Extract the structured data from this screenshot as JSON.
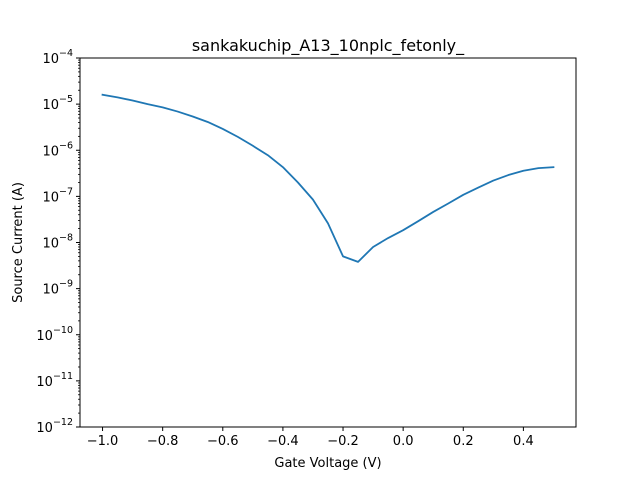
{
  "chart_data": {
    "type": "line",
    "title": "sankakuchip_A13_10nplc_fetonly_",
    "xlabel": "Gate Voltage (V)",
    "ylabel": "Source Current (A)",
    "xlim": [
      -1.075,
      0.575
    ],
    "ylim": [
      1e-12,
      0.0001
    ],
    "yscale": "log",
    "grid": false,
    "xticks": [
      -1.0,
      -0.8,
      -0.6,
      -0.4,
      -0.2,
      0.0,
      0.2,
      0.4
    ],
    "xtick_labels": [
      "−1.0",
      "−0.8",
      "−0.6",
      "−0.4",
      "−0.2",
      "0.0",
      "0.2",
      "0.4"
    ],
    "yticks": [
      {
        "value": 1e-12,
        "base": "10",
        "exp": "−12"
      },
      {
        "value": 1e-11,
        "base": "10",
        "exp": "−11"
      },
      {
        "value": 1e-10,
        "base": "10",
        "exp": "−10"
      },
      {
        "value": 1e-09,
        "base": "10",
        "exp": "−9"
      },
      {
        "value": 1e-08,
        "base": "10",
        "exp": "−8"
      },
      {
        "value": 1e-07,
        "base": "10",
        "exp": "−7"
      },
      {
        "value": 1e-06,
        "base": "10",
        "exp": "−6"
      },
      {
        "value": 1e-05,
        "base": "10",
        "exp": "−5"
      },
      {
        "value": 0.0001,
        "base": "10",
        "exp": "−4"
      }
    ],
    "series": [
      {
        "color": "#1f77b4",
        "x": [
          -1.0,
          -0.95,
          -0.9,
          -0.85,
          -0.8,
          -0.75,
          -0.7,
          -0.65,
          -0.6,
          -0.55,
          -0.5,
          -0.45,
          -0.4,
          -0.35,
          -0.3,
          -0.25,
          -0.2,
          -0.15,
          -0.1,
          -0.05,
          0.0,
          0.05,
          0.1,
          0.15,
          0.2,
          0.25,
          0.3,
          0.35,
          0.4,
          0.45,
          0.5
        ],
        "y": [
          1.6e-05,
          1.4e-05,
          1.2e-05,
          1e-05,
          8.5e-06,
          6.9e-06,
          5.4e-06,
          4.1e-06,
          2.9e-06,
          1.95e-06,
          1.25e-06,
          7.8e-07,
          4.3e-07,
          2e-07,
          8.5e-08,
          2.6e-08,
          5e-09,
          3.8e-09,
          8e-09,
          1.25e-08,
          1.85e-08,
          2.9e-08,
          4.6e-08,
          7e-08,
          1.08e-07,
          1.55e-07,
          2.2e-07,
          2.9e-07,
          3.6e-07,
          4.1e-07,
          4.3e-07
        ]
      }
    ]
  }
}
